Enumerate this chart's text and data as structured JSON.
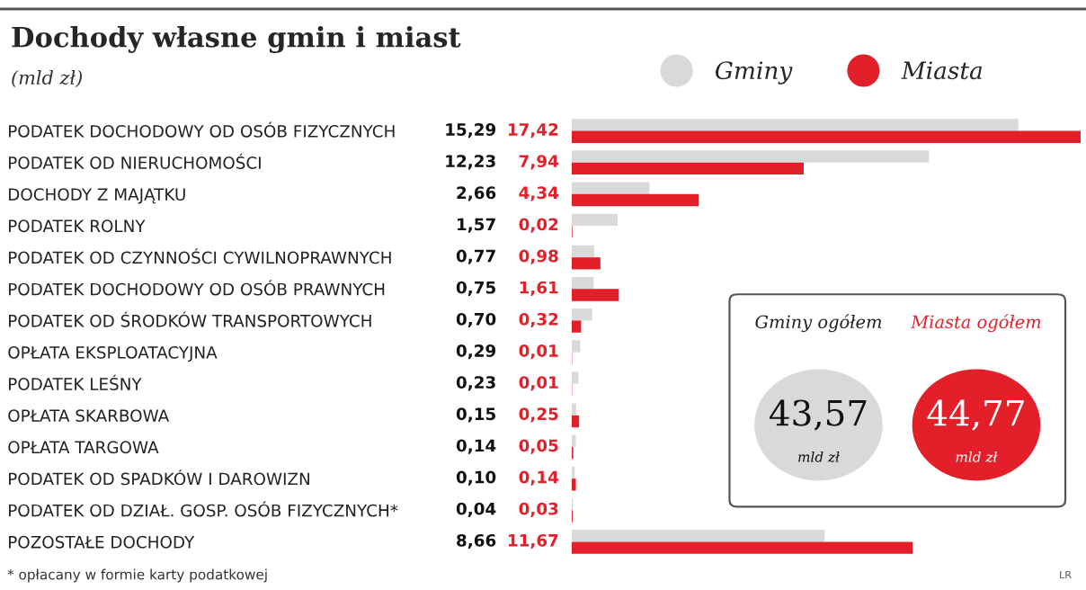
{
  "chart_data": {
    "type": "bar",
    "orientation": "horizontal",
    "title": "Dochody własne gmin i miast",
    "subtitle": "(mld zł)",
    "categories": [
      "PODATEK DOCHODOWY OD OSÓB FIZYCZNYCH",
      "PODATEK OD NIERUCHOMOŚCI",
      "DOCHODY Z MAJĄTKU",
      "PODATEK ROLNY",
      "PODATEK OD CZYNNOŚCI CYWILNOPRAWNYCH",
      "PODATEK DOCHODOWY OD OSÓB PRAWNYCH",
      "PODATEK OD ŚRODKÓW TRANSPORTOWYCH",
      "OPŁATA EKSPLOATACYJNA",
      "PODATEK LEŚNY",
      "OPŁATA SKARBOWA",
      "OPŁATA TARGOWA",
      "PODATEK OD SPADKÓW I DAROWIZN",
      "PODATEK OD DZIAŁ. GOSP. OSÓB FIZYCZNYCH*",
      "POZOSTAŁE DOCHODY"
    ],
    "series": [
      {
        "name": "Gminy",
        "color": "#d9d9d9",
        "values": [
          15.29,
          12.23,
          2.66,
          1.57,
          0.77,
          0.75,
          0.7,
          0.29,
          0.23,
          0.15,
          0.14,
          0.1,
          0.04,
          8.66
        ],
        "value_labels": [
          "15,29",
          "12,23",
          "2,66",
          "1,57",
          "0,77",
          "0,75",
          "0,70",
          "0,29",
          "0,23",
          "0,15",
          "0,14",
          "0,10",
          "0,04",
          "8,66"
        ]
      },
      {
        "name": "Miasta",
        "color": "#e3202a",
        "values": [
          17.42,
          7.94,
          4.34,
          0.02,
          0.98,
          1.61,
          0.32,
          0.01,
          0.01,
          0.25,
          0.05,
          0.14,
          0.03,
          11.67
        ],
        "value_labels": [
          "17,42",
          "7,94",
          "4,34",
          "0,02",
          "0,98",
          "1,61",
          "0,32",
          "0,01",
          "0,01",
          "0,25",
          "0,05",
          "0,14",
          "0,03",
          "11,67"
        ]
      }
    ],
    "legend": "top",
    "annotations": [
      "* opłacany w formie karty podatkowej",
      "LR",
      "Gminy ogółem",
      "43,57",
      "mld zł",
      "Miasta ogółem",
      "44,77",
      "mld zł"
    ]
  }
}
